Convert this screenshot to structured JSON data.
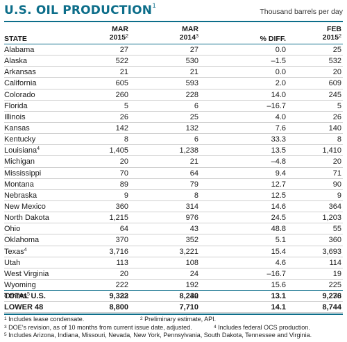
{
  "title": "U.S. OIL PRODUCTION",
  "title_note": "1",
  "units": "Thousand barrels per day",
  "colors": {
    "accent": "#0d6e8a",
    "rule": "#cfcfcf"
  },
  "columns": {
    "state": "STATE",
    "c1_line1": "MAR",
    "c1_line2": "2015",
    "c1_note": "2",
    "c2_line1": "MAR",
    "c2_line2": "2014",
    "c2_note": "3",
    "c3": "% DIFF.",
    "c4_line1": "FEB",
    "c4_line2": "2015",
    "c4_note": "2"
  },
  "rows": [
    {
      "state": "Alabama",
      "note": "",
      "mar2015": "27",
      "mar2014": "27",
      "diff": "0.0",
      "feb2015": "25"
    },
    {
      "state": "Alaska",
      "note": "",
      "mar2015": "522",
      "mar2014": "530",
      "diff": "–1.5",
      "feb2015": "532"
    },
    {
      "state": "Arkansas",
      "note": "",
      "mar2015": "21",
      "mar2014": "21",
      "diff": "0.0",
      "feb2015": "20"
    },
    {
      "state": "California",
      "note": "",
      "mar2015": "605",
      "mar2014": "593",
      "diff": "2.0",
      "feb2015": "609"
    },
    {
      "state": "Colorado",
      "note": "",
      "mar2015": "260",
      "mar2014": "228",
      "diff": "14.0",
      "feb2015": "245"
    },
    {
      "state": "Florida",
      "note": "",
      "mar2015": "5",
      "mar2014": "6",
      "diff": "–16.7",
      "feb2015": "5"
    },
    {
      "state": "Illinois",
      "note": "",
      "mar2015": "26",
      "mar2014": "25",
      "diff": "4.0",
      "feb2015": "26"
    },
    {
      "state": "Kansas",
      "note": "",
      "mar2015": "142",
      "mar2014": "132",
      "diff": "7.6",
      "feb2015": "140"
    },
    {
      "state": "Kentucky",
      "note": "",
      "mar2015": "8",
      "mar2014": "6",
      "diff": "33.3",
      "feb2015": "8"
    },
    {
      "state": "Louisiana",
      "note": "4",
      "mar2015": "1,405",
      "mar2014": "1,238",
      "diff": "13.5",
      "feb2015": "1,410"
    },
    {
      "state": "Michigan",
      "note": "",
      "mar2015": "20",
      "mar2014": "21",
      "diff": "–4.8",
      "feb2015": "20"
    },
    {
      "state": "Mississippi",
      "note": "",
      "mar2015": "70",
      "mar2014": "64",
      "diff": "9.4",
      "feb2015": "71"
    },
    {
      "state": "Montana",
      "note": "",
      "mar2015": "89",
      "mar2014": "79",
      "diff": "12.7",
      "feb2015": "90"
    },
    {
      "state": "Nebraska",
      "note": "",
      "mar2015": "9",
      "mar2014": "8",
      "diff": "12.5",
      "feb2015": "9"
    },
    {
      "state": "New Mexico",
      "note": "",
      "mar2015": "360",
      "mar2014": "314",
      "diff": "14.6",
      "feb2015": "364"
    },
    {
      "state": "North Dakota",
      "note": "",
      "mar2015": "1,215",
      "mar2014": "976",
      "diff": "24.5",
      "feb2015": "1,203"
    },
    {
      "state": "Ohio",
      "note": "",
      "mar2015": "64",
      "mar2014": "43",
      "diff": "48.8",
      "feb2015": "55"
    },
    {
      "state": "Oklahoma",
      "note": "",
      "mar2015": "370",
      "mar2014": "352",
      "diff": "5.1",
      "feb2015": "360"
    },
    {
      "state": "Texas",
      "note": "4",
      "mar2015": "3,716",
      "mar2014": "3,221",
      "diff": "15.4",
      "feb2015": "3,693"
    },
    {
      "state": "Utah",
      "note": "",
      "mar2015": "113",
      "mar2014": "108",
      "diff": "4.6",
      "feb2015": "114"
    },
    {
      "state": "West Virginia",
      "note": "",
      "mar2015": "20",
      "mar2014": "24",
      "diff": "–16.7",
      "feb2015": "19"
    },
    {
      "state": "Wyoming",
      "note": "",
      "mar2015": "222",
      "mar2014": "192",
      "diff": "15.6",
      "feb2015": "225"
    },
    {
      "state": "Others",
      "note": "5",
      "mar2015": "33",
      "mar2014": "32",
      "diff": "3.1",
      "feb2015": "33"
    }
  ],
  "totals": [
    {
      "state": "TOTAL U.S.",
      "mar2015": "9,322",
      "mar2014": "8,240",
      "diff": "13.1",
      "feb2015": "9,276"
    },
    {
      "state": "LOWER 48",
      "mar2015": "8,800",
      "mar2014": "7,710",
      "diff": "14.1",
      "feb2015": "8,744"
    }
  ],
  "footnotes": {
    "n1_mark": "1",
    "n1": "Includes lease condensate.",
    "n2_mark": "2",
    "n2": "Preliminary estimate, API.",
    "n3_mark": "3",
    "n3": "DOE’s revision, as of 10 months from current issue date, adjusted.",
    "n4_mark": "4",
    "n4": "Includes federal OCS production.",
    "n5_mark": "5",
    "n5": "Includes Arizona, Indiana, Missouri, Nevada, New York, Pennsylvania, South Dakota, Tennessee and Virginia."
  }
}
